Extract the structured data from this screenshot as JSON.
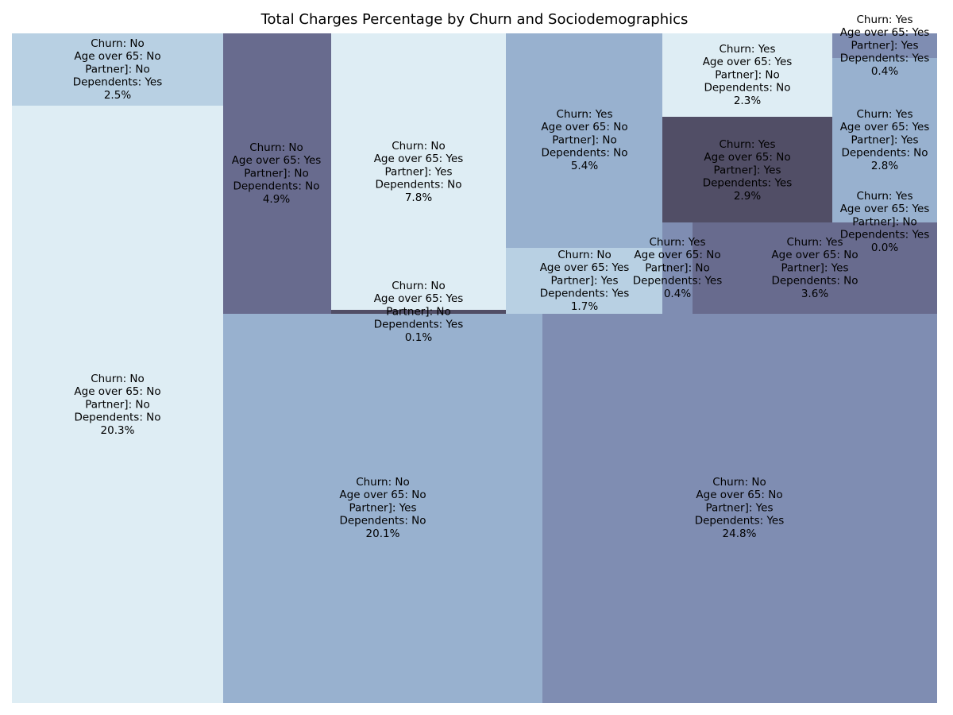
{
  "chart_data": {
    "type": "treemap",
    "title": "Total Charges Percentage by Churn and Sociodemographics",
    "colors": {
      "pale": "#deedf4",
      "light": "#b8d0e3",
      "mid": "#98b1cf",
      "slate": "#7f8db2",
      "dark": "#686b8e",
      "darkest": "#514e66"
    },
    "cells": [
      {
        "lines": [
          "Churn: No",
          "Age over 65: No",
          "Partner]: No",
          "Dependents: No",
          "20.3%"
        ],
        "value": 20.3,
        "color": "pale"
      },
      {
        "lines": [
          "Churn: No",
          "Age over 65: No",
          "Partner]: No",
          "Dependents: Yes",
          "2.5%"
        ],
        "value": 2.5,
        "color": "light"
      },
      {
        "lines": [
          "Churn: No",
          "Age over 65: No",
          "Partner]: Yes",
          "Dependents: No",
          "20.1%"
        ],
        "value": 20.1,
        "color": "mid"
      },
      {
        "lines": [
          "Churn: No",
          "Age over 65: No",
          "Partner]: Yes",
          "Dependents: Yes",
          "24.8%"
        ],
        "value": 24.8,
        "color": "slate"
      },
      {
        "lines": [
          "Churn: No",
          "Age over 65: Yes",
          "Partner]: No",
          "Dependents: No",
          "4.9%"
        ],
        "value": 4.9,
        "color": "dark"
      },
      {
        "lines": [
          "Churn: No",
          "Age over 65: Yes",
          "Partner]: Yes",
          "Dependents: No",
          "7.8%"
        ],
        "value": 7.8,
        "color": "pale"
      },
      {
        "lines": [
          "Churn: No",
          "Age over 65: Yes",
          "Partner]: No",
          "Dependents: Yes",
          "0.1%"
        ],
        "value": 0.1,
        "color": "darkest"
      },
      {
        "lines": [
          "Churn: Yes",
          "Age over 65: No",
          "Partner]: No",
          "Dependents: No",
          "5.4%"
        ],
        "value": 5.4,
        "color": "mid"
      },
      {
        "lines": [
          "Churn: No",
          "Age over 65: Yes",
          "Partner]: Yes",
          "Dependents: Yes",
          "1.7%"
        ],
        "value": 1.7,
        "color": "light"
      },
      {
        "lines": [
          "Churn: Yes",
          "Age over 65: No",
          "Partner]: No",
          "Dependents: Yes",
          "0.4%"
        ],
        "value": 0.4,
        "color": "slate"
      },
      {
        "lines": [
          "Churn: Yes",
          "Age over 65: No",
          "Partner]: Yes",
          "Dependents: No",
          "3.6%"
        ],
        "value": 3.6,
        "color": "dark"
      },
      {
        "lines": [
          "Churn: Yes",
          "Age over 65: Yes",
          "Partner]: No",
          "Dependents: No",
          "2.3%"
        ],
        "value": 2.3,
        "color": "pale"
      },
      {
        "lines": [
          "Churn: Yes",
          "Age over 65: No",
          "Partner]: Yes",
          "Dependents: Yes",
          "2.9%"
        ],
        "value": 2.9,
        "color": "darkest"
      },
      {
        "lines": [
          "Churn: Yes",
          "Age over 65: Yes",
          "Partner]: Yes",
          "Dependents: Yes",
          "0.4%"
        ],
        "value": 0.4,
        "color": "slate"
      },
      {
        "lines": [
          "Churn: Yes",
          "Age over 65: Yes",
          "Partner]: Yes",
          "Dependents: No",
          "2.8%"
        ],
        "value": 2.8,
        "color": "mid"
      },
      {
        "lines": [
          "Churn: Yes",
          "Age over 65: Yes",
          "Partner]: No",
          "Dependents: Yes",
          "0.0%"
        ],
        "value": 0.0,
        "color": "mid"
      }
    ]
  }
}
